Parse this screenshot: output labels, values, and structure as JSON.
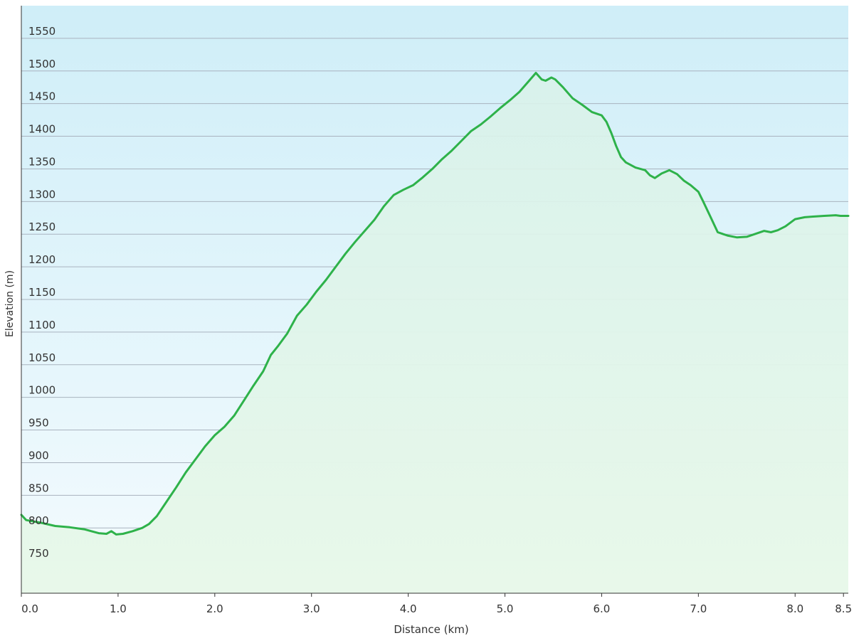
{
  "chart_data": {
    "type": "area",
    "xlabel": "Distance  (km)",
    "ylabel": "Elevation (m)",
    "xlim": [
      0,
      8.55
    ],
    "ylim": [
      700,
      1600
    ],
    "x_ticks": [
      "0.0",
      "1.0",
      "2.0",
      "3.0",
      "4.0",
      "5.0",
      "6.0",
      "7.0",
      "8.0",
      "8.5"
    ],
    "x_tick_values": [
      0,
      1,
      2,
      3,
      4,
      5,
      6,
      7,
      8,
      8.5
    ],
    "y_ticks": [
      750,
      800,
      850,
      900,
      950,
      1000,
      1050,
      1100,
      1150,
      1200,
      1250,
      1300,
      1350,
      1400,
      1450,
      1500,
      1550
    ],
    "grid": true,
    "colors": {
      "line": "#2eb24a",
      "fill_top": "#d9f2ea",
      "fill_bottom": "#e8f8ea",
      "bg_top": "#cfeef8",
      "bg_bottom": "#f4fbfe",
      "grid": "#a9b3bf",
      "axis": "#333333"
    },
    "series": [
      {
        "x": [
          0,
          0.05,
          0.2,
          0.35,
          0.5,
          0.65,
          0.8,
          0.88,
          0.93,
          0.98,
          1.05,
          1.15,
          1.25,
          1.32,
          1.4,
          1.5,
          1.6,
          1.7,
          1.8,
          1.9,
          2.0,
          2.1,
          2.2,
          2.3,
          2.4,
          2.5,
          2.58,
          2.65,
          2.75,
          2.85,
          2.95,
          3.05,
          3.15,
          3.25,
          3.35,
          3.45,
          3.55,
          3.65,
          3.75,
          3.85,
          3.95,
          4.05,
          4.15,
          4.25,
          4.35,
          4.45,
          4.55,
          4.65,
          4.75,
          4.85,
          4.95,
          5.05,
          5.15,
          5.25,
          5.32,
          5.38,
          5.42,
          5.48,
          5.52,
          5.6,
          5.7,
          5.8,
          5.9,
          6.0,
          6.05,
          6.1,
          6.15,
          6.2,
          6.25,
          6.3,
          6.35,
          6.45,
          6.5,
          6.55,
          6.62,
          6.7,
          6.78,
          6.85,
          6.92,
          7.0,
          7.05,
          7.12,
          7.2,
          7.3,
          7.4,
          7.5,
          7.6,
          7.68,
          7.75,
          7.82,
          7.9,
          8.0,
          8.1,
          8.2,
          8.3,
          8.42,
          8.47,
          8.55
        ],
        "values": [
          820,
          812,
          808,
          803,
          801,
          798,
          792,
          791,
          795,
          790,
          791,
          795,
          800,
          806,
          818,
          840,
          862,
          885,
          905,
          925,
          942,
          955,
          972,
          995,
          1018,
          1040,
          1065,
          1078,
          1098,
          1125,
          1142,
          1162,
          1180,
          1200,
          1220,
          1238,
          1255,
          1272,
          1293,
          1310,
          1318,
          1325,
          1337,
          1350,
          1365,
          1378,
          1393,
          1408,
          1418,
          1430,
          1443,
          1455,
          1468,
          1485,
          1497,
          1487,
          1485,
          1490,
          1487,
          1475,
          1458,
          1448,
          1437,
          1432,
          1422,
          1405,
          1385,
          1368,
          1360,
          1356,
          1352,
          1348,
          1340,
          1336,
          1343,
          1348,
          1342,
          1332,
          1325,
          1315,
          1300,
          1278,
          1253,
          1248,
          1245,
          1246,
          1251,
          1255,
          1253,
          1256,
          1262,
          1273,
          1276,
          1277,
          1278,
          1279,
          1278,
          1278
        ]
      }
    ]
  }
}
